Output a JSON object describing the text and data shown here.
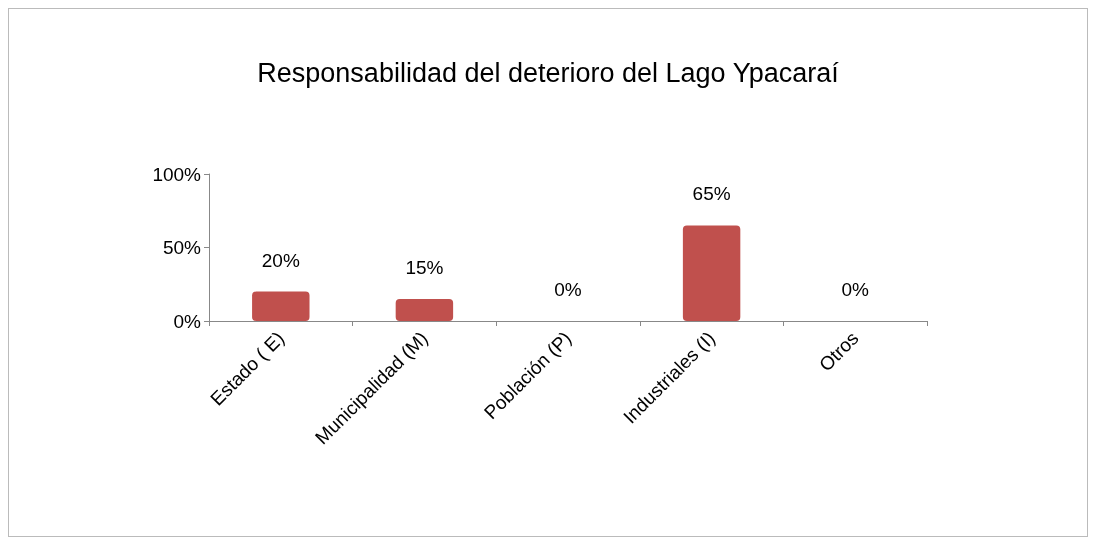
{
  "chart_data": {
    "type": "bar",
    "title": "Responsabilidad del deterioro del Lago Ypacaraí",
    "categories": [
      "Estado ( E)",
      "Municipalidad (M)",
      "Población (P)",
      "Industriales (I)",
      "Otros"
    ],
    "values": [
      20,
      15,
      0,
      65,
      0
    ],
    "value_labels": [
      "20%",
      "15%",
      "0%",
      "65%",
      "0%"
    ],
    "color": "#c0504d",
    "ylim": [
      0,
      100
    ],
    "yticks": [
      {
        "value": 0,
        "label": "0%"
      },
      {
        "value": 50,
        "label": "50%"
      },
      {
        "value": 100,
        "label": "100%"
      }
    ]
  }
}
